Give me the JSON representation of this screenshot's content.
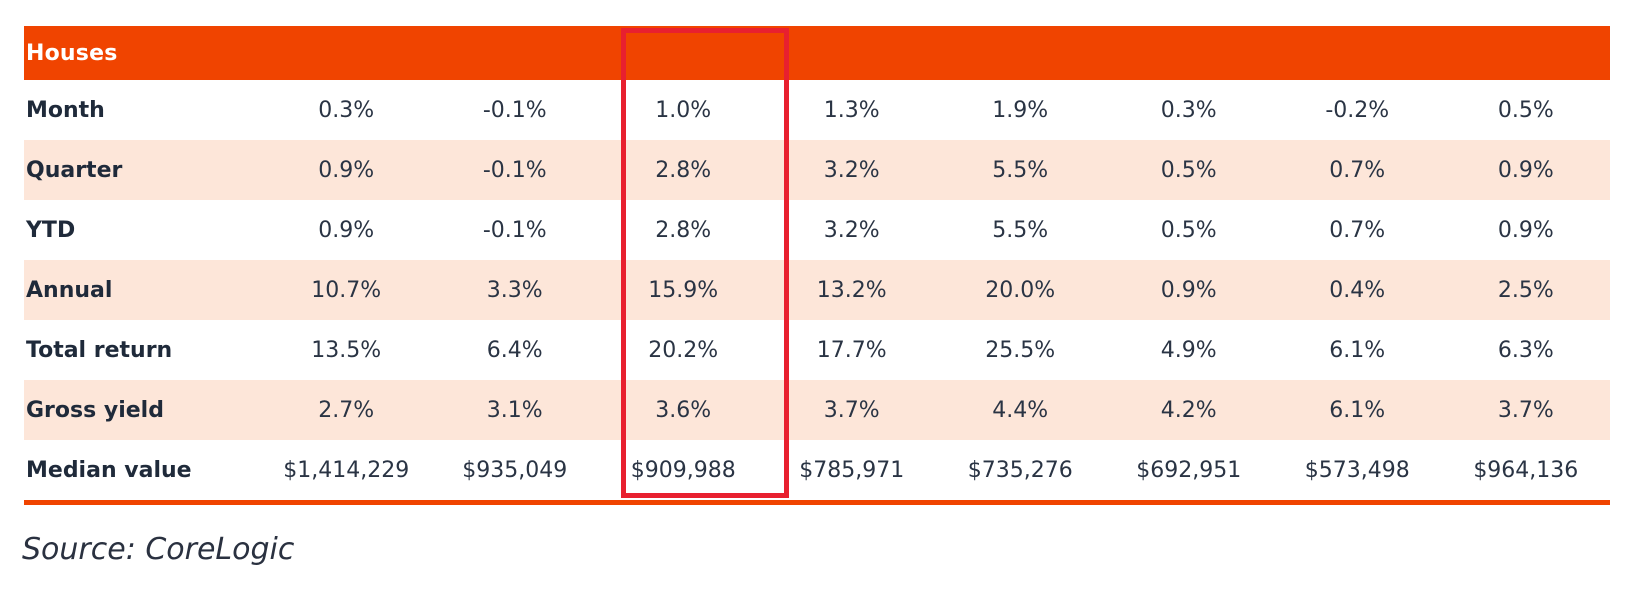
{
  "table": {
    "title": "Houses",
    "rows": [
      {
        "label": "Month",
        "values": [
          "0.3%",
          "-0.1%",
          "1.0%",
          "1.3%",
          "1.9%",
          "0.3%",
          "-0.2%",
          "0.5%"
        ]
      },
      {
        "label": "Quarter",
        "values": [
          "0.9%",
          "-0.1%",
          "2.8%",
          "3.2%",
          "5.5%",
          "0.5%",
          "0.7%",
          "0.9%"
        ]
      },
      {
        "label": "YTD",
        "values": [
          "0.9%",
          "-0.1%",
          "2.8%",
          "3.2%",
          "5.5%",
          "0.5%",
          "0.7%",
          "0.9%"
        ]
      },
      {
        "label": "Annual",
        "values": [
          "10.7%",
          "3.3%",
          "15.9%",
          "13.2%",
          "20.0%",
          "0.9%",
          "0.4%",
          "2.5%"
        ]
      },
      {
        "label": "Total return",
        "values": [
          "13.5%",
          "6.4%",
          "20.2%",
          "17.7%",
          "25.5%",
          "4.9%",
          "6.1%",
          "6.3%"
        ]
      },
      {
        "label": "Gross yield",
        "values": [
          "2.7%",
          "3.1%",
          "3.6%",
          "3.7%",
          "4.4%",
          "4.2%",
          "6.1%",
          "3.7%"
        ]
      },
      {
        "label": "Median value",
        "values": [
          "$1,414,229",
          "$935,049",
          "$909,988",
          "$785,971",
          "$735,276",
          "$692,951",
          "$573,498",
          "$964,136"
        ]
      }
    ],
    "highlighted_column_index": 2
  },
  "source": "Source: CoreLogic",
  "colors": {
    "header_bg": "#f04400",
    "header_text": "#ffffff",
    "shaded_row": "#fde6d9",
    "highlight_border": "#e8202f",
    "bottom_rule": "#f04400"
  }
}
